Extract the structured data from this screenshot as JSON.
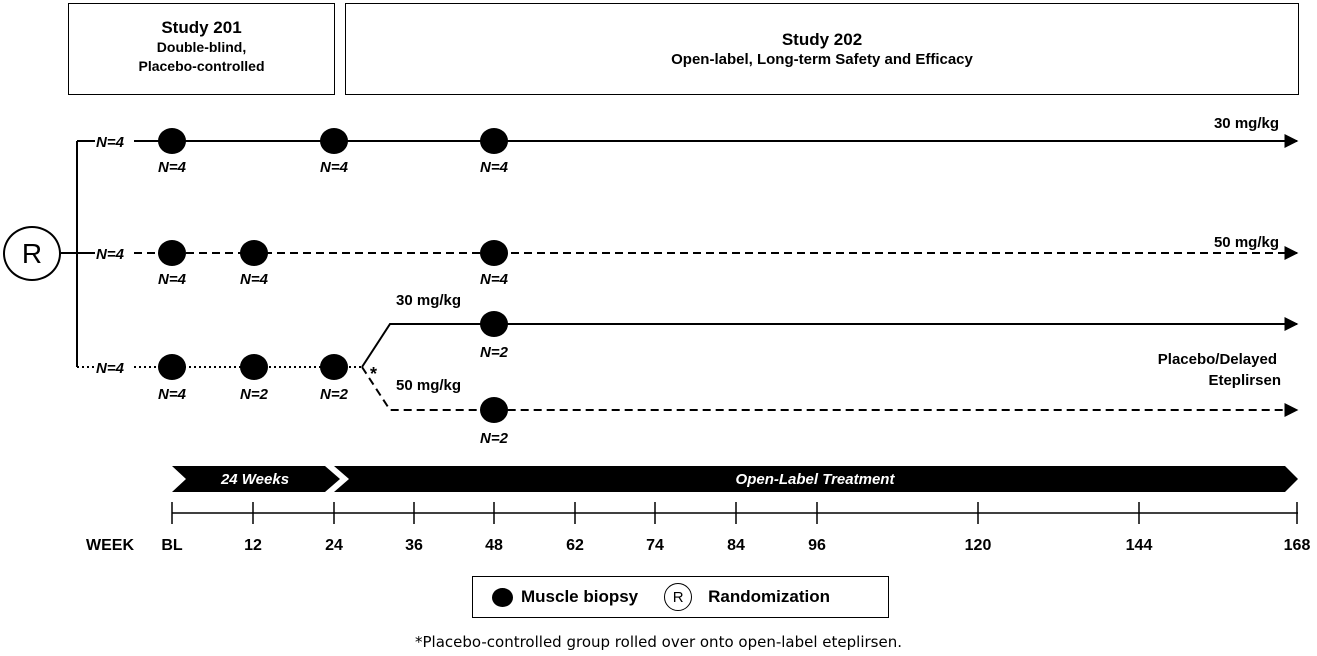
{
  "study201": {
    "title": "Study 201",
    "line1": "Double-blind,",
    "line2": "Placebo-controlled"
  },
  "study202": {
    "title": "Study 202",
    "line1": "Open-label, Long-term Safety and Efficacy"
  },
  "randomization_symbol": "R",
  "arms": {
    "arm1": {
      "n_start": "N=4",
      "dose": "30 mg/kg",
      "biopsies": [
        "N=4",
        "N=4",
        "N=4"
      ]
    },
    "arm2": {
      "n_start": "N=4",
      "dose": "50 mg/kg",
      "biopsies": [
        "N=4",
        "N=4",
        "N=4"
      ]
    },
    "arm3": {
      "n_start": "N=4",
      "dose_line1": "Placebo/Delayed",
      "dose_line2": "Eteplirsen",
      "biopsies": [
        "N=4",
        "N=2",
        "N=2"
      ],
      "asterisk": "*",
      "branch_upper": {
        "dose": "30 mg/kg",
        "biopsy": "N=2"
      },
      "branch_lower": {
        "dose": "50 mg/kg",
        "biopsy": "N=2"
      }
    }
  },
  "phase_bar": {
    "phase1": "24 Weeks",
    "phase2": "Open-Label Treatment"
  },
  "axis": {
    "label": "WEEK",
    "ticks": [
      "BL",
      "12",
      "24",
      "36",
      "48",
      "62",
      "74",
      "84",
      "96",
      "120",
      "144",
      "168"
    ]
  },
  "legend": {
    "biopsy": "Muscle biopsy",
    "rand_symbol": "R",
    "randomization": "Randomization"
  },
  "footnote": "*Placebo-controlled group rolled over onto open-label eteplirsen."
}
